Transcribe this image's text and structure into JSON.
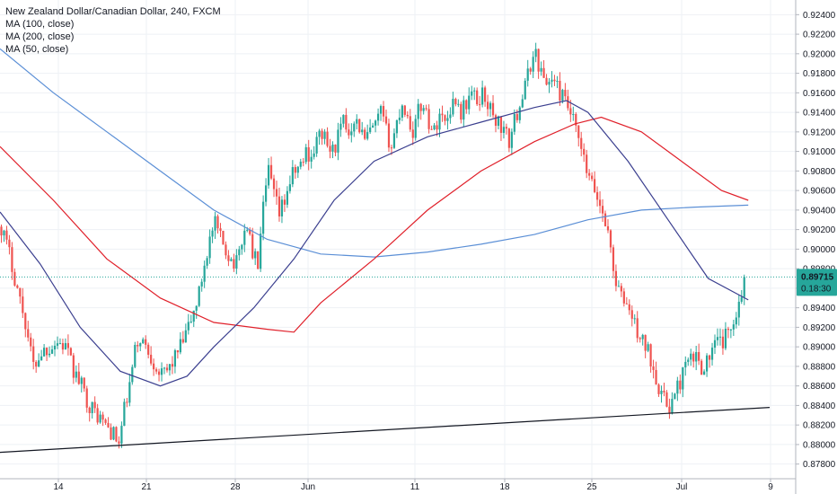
{
  "chart_data": {
    "type": "candlestick",
    "title": "New Zealand Dollar/Canadian Dollar, 240, FXCM",
    "indicators": [
      {
        "name": "MA (100, close)",
        "color": "#e0202a"
      },
      {
        "name": "MA (200, close)",
        "color": "#5b8fd6"
      },
      {
        "name": "MA (50, close)",
        "color": "#3b3f8f"
      }
    ],
    "ylim": [
      0.8765,
      0.9255
    ],
    "y_ticks": [
      "0.87800",
      "0.88000",
      "0.88200",
      "0.88400",
      "0.88600",
      "0.88800",
      "0.89000",
      "0.89200",
      "0.89400",
      "0.89600",
      "0.89800",
      "0.90000",
      "0.90200",
      "0.90400",
      "0.90600",
      "0.90800",
      "0.91000",
      "0.91200",
      "0.91400",
      "0.91600",
      "0.91800",
      "0.92000",
      "0.92200",
      "0.92400"
    ],
    "x_ticks": [
      "14",
      "21",
      "28",
      "Jun",
      "11",
      "18",
      "25",
      "Jul",
      "9"
    ],
    "last_price": {
      "value": 0.89715,
      "label": "0.89715",
      "countdown": "0.18:30",
      "color": "#26a69a"
    },
    "up_color": "#26a69a",
    "down_color": "#ef5350",
    "ohlc_anchors": [
      [
        0,
        0.9023
      ],
      [
        3,
        0.8995
      ],
      [
        6,
        0.896
      ],
      [
        9,
        0.8925
      ],
      [
        12,
        0.888
      ],
      [
        15,
        0.8895
      ],
      [
        18,
        0.89
      ],
      [
        21,
        0.8905
      ],
      [
        24,
        0.89
      ],
      [
        27,
        0.8875
      ],
      [
        30,
        0.886
      ],
      [
        33,
        0.884
      ],
      [
        36,
        0.883
      ],
      [
        39,
        0.882
      ],
      [
        42,
        0.881
      ],
      [
        44,
        0.88
      ],
      [
        46,
        0.8835
      ],
      [
        48,
        0.886
      ],
      [
        50,
        0.8895
      ],
      [
        52,
        0.891
      ],
      [
        54,
        0.89
      ],
      [
        56,
        0.889
      ],
      [
        58,
        0.888
      ],
      [
        60,
        0.887
      ],
      [
        62,
        0.8875
      ],
      [
        64,
        0.8885
      ],
      [
        66,
        0.8895
      ],
      [
        68,
        0.8905
      ],
      [
        70,
        0.892
      ],
      [
        72,
        0.8935
      ],
      [
        74,
        0.8955
      ],
      [
        76,
        0.8985
      ],
      [
        78,
        0.901
      ],
      [
        80,
        0.9025
      ],
      [
        82,
        0.901
      ],
      [
        84,
        0.9
      ],
      [
        86,
        0.899
      ],
      [
        88,
        0.8985
      ],
      [
        90,
        0.901
      ],
      [
        92,
        0.9025
      ],
      [
        94,
        0.8995
      ],
      [
        96,
        0.8985
      ],
      [
        98,
        0.904
      ],
      [
        100,
        0.908
      ],
      [
        102,
        0.9055
      ],
      [
        104,
        0.9035
      ],
      [
        106,
        0.905
      ],
      [
        108,
        0.907
      ],
      [
        110,
        0.908
      ],
      [
        112,
        0.9085
      ],
      [
        114,
        0.91
      ],
      [
        116,
        0.9095
      ],
      [
        118,
        0.911
      ],
      [
        120,
        0.912
      ],
      [
        122,
        0.9105
      ],
      [
        124,
        0.91
      ],
      [
        126,
        0.9115
      ],
      [
        128,
        0.913
      ],
      [
        130,
        0.912
      ],
      [
        132,
        0.9135
      ],
      [
        134,
        0.9125
      ],
      [
        136,
        0.911
      ],
      [
        138,
        0.912
      ],
      [
        140,
        0.9125
      ],
      [
        142,
        0.914
      ],
      [
        144,
        0.912
      ],
      [
        146,
        0.9105
      ],
      [
        148,
        0.913
      ],
      [
        150,
        0.915
      ],
      [
        152,
        0.9135
      ],
      [
        154,
        0.912
      ],
      [
        156,
        0.914
      ],
      [
        158,
        0.915
      ],
      [
        160,
        0.913
      ],
      [
        162,
        0.912
      ],
      [
        164,
        0.914
      ],
      [
        166,
        0.913
      ],
      [
        168,
        0.9145
      ],
      [
        170,
        0.9155
      ],
      [
        172,
        0.914
      ],
      [
        174,
        0.915
      ],
      [
        176,
        0.916
      ],
      [
        178,
        0.915
      ],
      [
        180,
        0.916
      ],
      [
        182,
        0.915
      ],
      [
        184,
        0.9135
      ],
      [
        186,
        0.913
      ],
      [
        188,
        0.912
      ],
      [
        190,
        0.911
      ],
      [
        192,
        0.913
      ],
      [
        194,
        0.915
      ],
      [
        196,
        0.9165
      ],
      [
        198,
        0.919
      ],
      [
        200,
        0.92
      ],
      [
        202,
        0.918
      ],
      [
        204,
        0.917
      ],
      [
        206,
        0.9175
      ],
      [
        208,
        0.9165
      ],
      [
        210,
        0.9155
      ],
      [
        212,
        0.9145
      ],
      [
        214,
        0.913
      ],
      [
        216,
        0.911
      ],
      [
        218,
        0.909
      ],
      [
        220,
        0.907
      ],
      [
        222,
        0.906
      ],
      [
        224,
        0.9045
      ],
      [
        226,
        0.903
      ],
      [
        228,
        0.9
      ],
      [
        230,
        0.8965
      ],
      [
        232,
        0.895
      ],
      [
        234,
        0.8945
      ],
      [
        236,
        0.893
      ],
      [
        238,
        0.8915
      ],
      [
        240,
        0.8905
      ],
      [
        242,
        0.8895
      ],
      [
        244,
        0.888
      ],
      [
        246,
        0.886
      ],
      [
        248,
        0.8845
      ],
      [
        250,
        0.884
      ],
      [
        252,
        0.885
      ],
      [
        254,
        0.8865
      ],
      [
        256,
        0.888
      ],
      [
        258,
        0.8885
      ],
      [
        260,
        0.889
      ],
      [
        262,
        0.888
      ],
      [
        264,
        0.8885
      ],
      [
        266,
        0.8895
      ],
      [
        268,
        0.8905
      ],
      [
        270,
        0.8905
      ],
      [
        272,
        0.8915
      ],
      [
        274,
        0.893
      ],
      [
        276,
        0.8945
      ],
      [
        278,
        0.8972
      ]
    ],
    "ma_100": [
      [
        0,
        0.9105
      ],
      [
        20,
        0.905
      ],
      [
        40,
        0.899
      ],
      [
        60,
        0.895
      ],
      [
        80,
        0.8925
      ],
      [
        100,
        0.8918
      ],
      [
        110,
        0.8915
      ],
      [
        120,
        0.8945
      ],
      [
        140,
        0.899
      ],
      [
        160,
        0.904
      ],
      [
        180,
        0.908
      ],
      [
        200,
        0.911
      ],
      [
        215,
        0.9128
      ],
      [
        225,
        0.9135
      ],
      [
        240,
        0.912
      ],
      [
        255,
        0.909
      ],
      [
        270,
        0.906
      ],
      [
        280,
        0.905
      ]
    ],
    "ma_200": [
      [
        0,
        0.9205
      ],
      [
        20,
        0.916
      ],
      [
        40,
        0.912
      ],
      [
        60,
        0.908
      ],
      [
        80,
        0.904
      ],
      [
        100,
        0.901
      ],
      [
        120,
        0.8995
      ],
      [
        140,
        0.8992
      ],
      [
        160,
        0.8997
      ],
      [
        180,
        0.9005
      ],
      [
        200,
        0.9015
      ],
      [
        220,
        0.903
      ],
      [
        240,
        0.904
      ],
      [
        260,
        0.9043
      ],
      [
        280,
        0.9045
      ]
    ],
    "ma_50": [
      [
        0,
        0.9038
      ],
      [
        15,
        0.8985
      ],
      [
        30,
        0.892
      ],
      [
        45,
        0.8875
      ],
      [
        60,
        0.886
      ],
      [
        70,
        0.887
      ],
      [
        80,
        0.89
      ],
      [
        95,
        0.894
      ],
      [
        110,
        0.899
      ],
      [
        125,
        0.905
      ],
      [
        140,
        0.909
      ],
      [
        160,
        0.9115
      ],
      [
        180,
        0.913
      ],
      [
        200,
        0.9145
      ],
      [
        212,
        0.9152
      ],
      [
        220,
        0.914
      ],
      [
        235,
        0.909
      ],
      [
        250,
        0.903
      ],
      [
        265,
        0.897
      ],
      [
        280,
        0.8948
      ]
    ],
    "trendline": [
      [
        0,
        0.8792
      ],
      [
        288,
        0.8838
      ]
    ]
  }
}
